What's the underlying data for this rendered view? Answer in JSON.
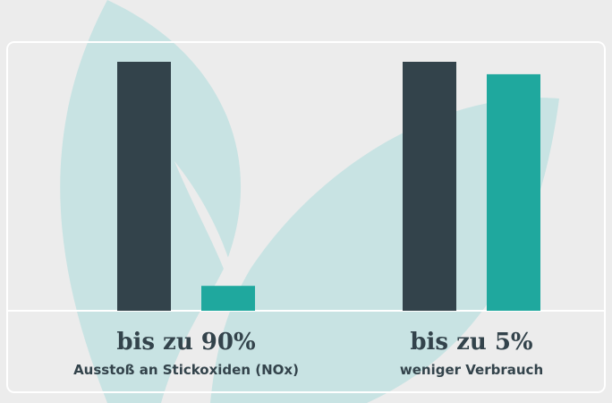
{
  "chart_data": {
    "type": "bar",
    "ylim": [
      0,
      100
    ],
    "colors": [
      "#33434b",
      "#1fa89e"
    ],
    "groups": [
      {
        "headline": "bis zu 90%",
        "label": "Ausstoß an Stickoxiden (NOx)",
        "values": [
          100,
          10
        ]
      },
      {
        "headline": "bis zu 5%",
        "label": "weniger Verbrauch",
        "values": [
          100,
          95
        ]
      }
    ]
  }
}
